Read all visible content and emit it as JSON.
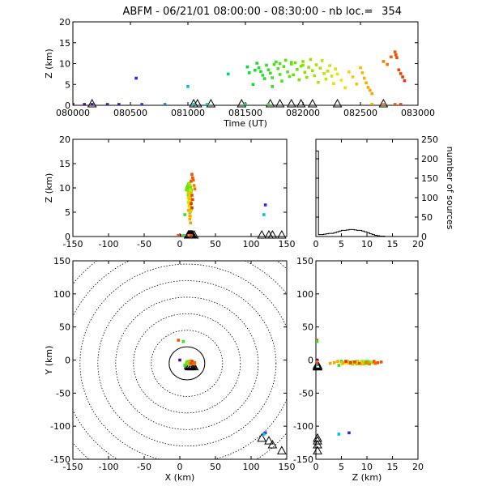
{
  "title": "ABFM - 06/21/01 08:00:00 - 08:30:00 - nb loc.=",
  "count": "354",
  "chart_data": [
    {
      "id": "time-height",
      "type": "scatter",
      "xlabel": "Time (UT)",
      "ylabel": "Z (km)",
      "xlim": [
        "080000",
        "083000"
      ],
      "ylim": [
        0,
        20
      ],
      "x_ticks": [
        "080000",
        "080500",
        "081000",
        "081500",
        "082000",
        "082500",
        "083000"
      ],
      "y_ticks": [
        "0",
        "5",
        "10",
        "15",
        "20"
      ]
    },
    {
      "id": "x-z",
      "type": "scatter",
      "xlabel": "",
      "ylabel": "Z (km)",
      "xlim": [
        -150,
        150
      ],
      "ylim": [
        0,
        20
      ],
      "x_ticks": [
        "-150",
        "-100",
        "-50",
        "0",
        "50",
        "100",
        "150"
      ],
      "y_ticks": [
        "0",
        "5",
        "10",
        "15",
        "20"
      ]
    },
    {
      "id": "altitude-histogram",
      "type": "bar",
      "xlabel": "",
      "ylabel": "number of sources",
      "xlim": [
        0,
        20
      ],
      "ylim": [
        0,
        250
      ],
      "x_ticks": [
        "0",
        "5",
        "10",
        "15",
        "20"
      ],
      "y_ticks": [
        "0",
        "50",
        "100",
        "150",
        "200",
        "250"
      ],
      "bin_width": 0.5,
      "values": [
        220,
        5,
        5,
        6,
        7,
        8,
        8,
        10,
        12,
        14,
        16,
        16,
        17,
        18,
        18,
        17,
        16,
        16,
        14,
        12,
        10,
        7,
        5,
        3,
        2,
        1,
        1,
        0,
        0,
        0,
        0,
        0,
        0,
        0,
        0,
        0,
        0,
        0,
        0,
        0
      ]
    },
    {
      "id": "plan-view",
      "type": "scatter",
      "xlabel": "X (km)",
      "ylabel": "Y (km)",
      "xlim": [
        -150,
        150
      ],
      "ylim": [
        -150,
        150
      ],
      "x_ticks": [
        "-150",
        "-100",
        "-50",
        "0",
        "50",
        "100",
        "150"
      ],
      "y_ticks": [
        "-150",
        "-100",
        "-50",
        "0",
        "50",
        "100",
        "150"
      ],
      "range_rings_km": [
        25,
        50,
        75,
        100,
        125,
        150,
        175,
        200
      ],
      "rings_center": [
        10,
        -5
      ]
    },
    {
      "id": "z-y",
      "type": "scatter",
      "xlabel": "Z (km)",
      "ylabel": "",
      "xlim": [
        0,
        20
      ],
      "ylim": [
        -150,
        150
      ],
      "x_ticks": [
        "0",
        "5",
        "10",
        "15",
        "20"
      ],
      "y_ticks": [
        "-150",
        "-100",
        "-50",
        "0",
        "50",
        "100",
        "150"
      ]
    }
  ],
  "stations": [
    {
      "x": 12,
      "y": -8,
      "t": 81030
    },
    {
      "x": 14,
      "y": -9,
      "t": 81050
    },
    {
      "x": 16,
      "y": -10,
      "t": 81200
    },
    {
      "x": 18,
      "y": -8,
      "t": 81440
    },
    {
      "x": 20,
      "y": -10,
      "t": 81710
    },
    {
      "x": 15,
      "y": -7,
      "t": 81800
    },
    {
      "x": 13,
      "y": -10,
      "t": 81900
    },
    {
      "x": 17,
      "y": -9,
      "t": 81950
    },
    {
      "x": 115,
      "y": -118,
      "t": 82050
    },
    {
      "x": 125,
      "y": -122,
      "t": 82300
    },
    {
      "x": 130,
      "y": -128,
      "t": 82700
    },
    {
      "x": 143,
      "y": -137,
      "t": 80140
    }
  ],
  "sources": [
    {
      "t": 80000,
      "x": 0,
      "y": 0,
      "z": 0.2
    },
    {
      "t": 80100,
      "x": 10,
      "y": -5,
      "z": 0.2
    },
    {
      "t": 80140,
      "x": 12,
      "y": -5,
      "z": 0.2
    },
    {
      "t": 80300,
      "x": 14,
      "y": -4,
      "z": 0.2
    },
    {
      "t": 80400,
      "x": 15,
      "y": -5,
      "z": 0.2
    },
    {
      "t": 80530,
      "x": 120,
      "y": -110,
      "z": 6.5
    },
    {
      "t": 80600,
      "x": 13,
      "y": -6,
      "z": 0.2
    },
    {
      "t": 80800,
      "x": 15,
      "y": -7,
      "z": 0.2
    },
    {
      "t": 81000,
      "x": 118,
      "y": -112,
      "z": 4.5
    },
    {
      "t": 81030,
      "x": 14,
      "y": -6,
      "z": 0.2
    },
    {
      "t": 81140,
      "x": 16,
      "y": -5,
      "z": 0.2
    },
    {
      "t": 81330,
      "x": 15,
      "y": -4,
      "z": 7.5
    },
    {
      "t": 81500,
      "x": 14,
      "y": -5,
      "z": 0.2
    },
    {
      "t": 81510,
      "x": 12,
      "y": -4,
      "z": 9.2
    },
    {
      "t": 81520,
      "x": 13,
      "y": -3,
      "z": 7.8
    },
    {
      "t": 81540,
      "x": 14,
      "y": -2,
      "z": 5.0
    },
    {
      "t": 81550,
      "x": 15,
      "y": -3,
      "z": 8.4
    },
    {
      "t": 81600,
      "x": 12,
      "y": -5,
      "z": 10.1
    },
    {
      "t": 81610,
      "x": 14,
      "y": -4,
      "z": 9.0
    },
    {
      "t": 81620,
      "x": 15,
      "y": -2,
      "z": 8.1
    },
    {
      "t": 81630,
      "x": 13,
      "y": -6,
      "z": 7.2
    },
    {
      "t": 81640,
      "x": 14,
      "y": -3,
      "z": 6.4
    },
    {
      "t": 81650,
      "x": 16,
      "y": -4,
      "z": 9.6
    },
    {
      "t": 81700,
      "x": 12,
      "y": -3,
      "z": 8.5
    },
    {
      "t": 81710,
      "x": 14,
      "y": -5,
      "z": 7.7
    },
    {
      "t": 81720,
      "x": 15,
      "y": -4,
      "z": 6.6
    },
    {
      "t": 81730,
      "x": 13,
      "y": -2,
      "z": 9.8
    },
    {
      "t": 81740,
      "x": 14,
      "y": -4,
      "z": 10.4
    },
    {
      "t": 81750,
      "x": 15,
      "y": -5,
      "z": 8.8
    },
    {
      "t": 81800,
      "x": 13,
      "y": -3,
      "z": 7.4
    },
    {
      "t": 81810,
      "x": 14,
      "y": -2,
      "z": 5.8
    },
    {
      "t": 81820,
      "x": 16,
      "y": -5,
      "z": 9.3
    },
    {
      "t": 81830,
      "x": 12,
      "y": -4,
      "z": 10.8
    },
    {
      "t": 81840,
      "x": 14,
      "y": -6,
      "z": 8.0
    },
    {
      "t": 81850,
      "x": 15,
      "y": -3,
      "z": 6.9
    },
    {
      "t": 81900,
      "x": 13,
      "y": -4,
      "z": 9.9
    },
    {
      "t": 81910,
      "x": 14,
      "y": -5,
      "z": 7.3
    },
    {
      "t": 81920,
      "x": 15,
      "y": -2,
      "z": 10.2
    },
    {
      "t": 81930,
      "x": 12,
      "y": -3,
      "z": 8.6
    },
    {
      "t": 81940,
      "x": 14,
      "y": -4,
      "z": 6.1
    },
    {
      "t": 81950,
      "x": 16,
      "y": -6,
      "z": 9.4
    },
    {
      "t": 82000,
      "x": 13,
      "y": -4,
      "z": 10.5
    },
    {
      "t": 82010,
      "x": 14,
      "y": -3,
      "z": 7.9
    },
    {
      "t": 82020,
      "x": 15,
      "y": -5,
      "z": 6.7
    },
    {
      "t": 82030,
      "x": 12,
      "y": -2,
      "z": 9.1
    },
    {
      "t": 82040,
      "x": 14,
      "y": -4,
      "z": 11.0
    },
    {
      "t": 82050,
      "x": 15,
      "y": -3,
      "z": 8.3
    },
    {
      "t": 82100,
      "x": 13,
      "y": -5,
      "z": 7.1
    },
    {
      "t": 82110,
      "x": 14,
      "y": -2,
      "z": 9.7
    },
    {
      "t": 82120,
      "x": 16,
      "y": -4,
      "z": 5.5
    },
    {
      "t": 82130,
      "x": 12,
      "y": -6,
      "z": 8.9
    },
    {
      "t": 82140,
      "x": 14,
      "y": -3,
      "z": 10.7
    },
    {
      "t": 82150,
      "x": 15,
      "y": -4,
      "z": 7.6
    },
    {
      "t": 82200,
      "x": 13,
      "y": -2,
      "z": 6.3
    },
    {
      "t": 82210,
      "x": 14,
      "y": -5,
      "z": 8.2
    },
    {
      "t": 82220,
      "x": 15,
      "y": -3,
      "z": 9.5
    },
    {
      "t": 82230,
      "x": 12,
      "y": -4,
      "z": 7.0
    },
    {
      "t": 82240,
      "x": 14,
      "y": -6,
      "z": 5.2
    },
    {
      "t": 82250,
      "x": 16,
      "y": -3,
      "z": 8.7
    },
    {
      "t": 82300,
      "x": 13,
      "y": -5,
      "z": 7.5
    },
    {
      "t": 82320,
      "x": 14,
      "y": -4,
      "z": 6.0
    },
    {
      "t": 82340,
      "x": 15,
      "y": -2,
      "z": 4.2
    },
    {
      "t": 82400,
      "x": 12,
      "y": -3,
      "z": 8.0
    },
    {
      "t": 82420,
      "x": 14,
      "y": -5,
      "z": 6.8
    },
    {
      "t": 82440,
      "x": 15,
      "y": -4,
      "z": 5.1
    },
    {
      "t": 82500,
      "x": 13,
      "y": -6,
      "z": 9.0
    },
    {
      "t": 82510,
      "x": 14,
      "y": -3,
      "z": 7.8
    },
    {
      "t": 82520,
      "x": 15,
      "y": -5,
      "z": 6.5
    },
    {
      "t": 82530,
      "x": 12,
      "y": -4,
      "z": 5.4
    },
    {
      "t": 82540,
      "x": 14,
      "y": -2,
      "z": 4.3
    },
    {
      "t": 82800,
      "x": 17,
      "y": -3,
      "z": 12.8
    },
    {
      "t": 82805,
      "x": 18,
      "y": -4,
      "z": 12.1
    },
    {
      "t": 82810,
      "x": 16,
      "y": -2,
      "z": 11.4
    },
    {
      "t": 82820,
      "x": 17,
      "y": -5,
      "z": 8.5
    },
    {
      "t": 82830,
      "x": 18,
      "y": -3,
      "z": 7.6
    },
    {
      "t": 82840,
      "x": 16,
      "y": -4,
      "z": 6.8
    },
    {
      "t": 82850,
      "x": 17,
      "y": -2,
      "z": 5.9
    },
    {
      "t": 82550,
      "x": 14,
      "y": -4,
      "z": 3.6
    },
    {
      "t": 82560,
      "x": 15,
      "y": -5,
      "z": 2.8
    },
    {
      "t": 82600,
      "x": 13,
      "y": -3,
      "z": 0.2
    },
    {
      "t": 82700,
      "x": 14,
      "y": -5,
      "z": 0.2
    },
    {
      "t": 82800,
      "x": -2,
      "y": 30,
      "z": 0.2
    },
    {
      "t": 82830,
      "x": 16,
      "y": -5,
      "z": 0.2
    },
    {
      "t": 81800,
      "x": 10,
      "y": -3,
      "z": 10.0
    },
    {
      "t": 81900,
      "x": 11,
      "y": -4,
      "z": 10.3
    },
    {
      "t": 82000,
      "x": 9,
      "y": -5,
      "z": 9.6
    },
    {
      "t": 81700,
      "x": 5,
      "y": 28,
      "z": 0.2
    },
    {
      "t": 81720,
      "x": 7,
      "y": -8,
      "z": 4.5
    },
    {
      "t": 82700,
      "x": 20,
      "y": -6,
      "z": 10.5
    },
    {
      "t": 82720,
      "x": 21,
      "y": -4,
      "z": 9.8
    },
    {
      "t": 82740,
      "x": 19,
      "y": -5,
      "z": 11.6
    }
  ]
}
